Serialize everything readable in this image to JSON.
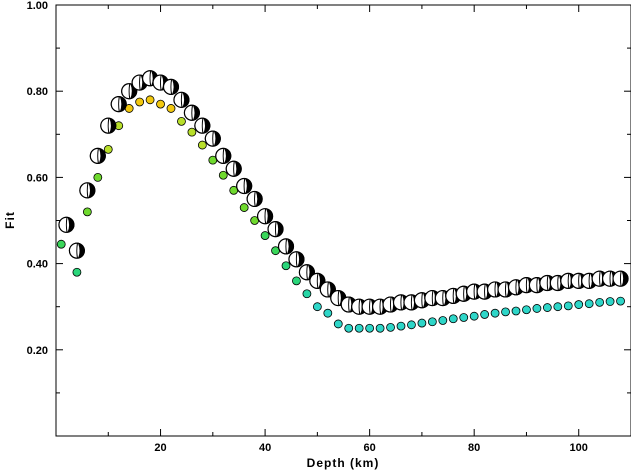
{
  "chart_data": {
    "type": "scatter",
    "title": "",
    "xlabel": "Depth (km)",
    "ylabel": "Fit",
    "xlim": [
      0,
      110
    ],
    "ylim": [
      0,
      1.0
    ],
    "x_ticks": [
      20,
      40,
      60,
      80,
      100
    ],
    "y_ticks": [
      0.2,
      0.4,
      0.6,
      0.8,
      1.0
    ],
    "x_tick_labels": [
      "20",
      "40",
      "60",
      "80",
      "100"
    ],
    "y_tick_labels": [
      "0.20",
      "0.40",
      "0.60",
      "0.80",
      "1.00"
    ],
    "grid": false,
    "legend": "none",
    "series": [
      {
        "kind": "focal-mechanism",
        "color": "#000000",
        "x": [
          2,
          4,
          6,
          8,
          10,
          12,
          14,
          16,
          18,
          20,
          22,
          24,
          26,
          28,
          30,
          32,
          34,
          36,
          38,
          40,
          42,
          44,
          46,
          48,
          50,
          52,
          54,
          56,
          58,
          60,
          62,
          64,
          66,
          68,
          70,
          72,
          74,
          76,
          78,
          80,
          82,
          84,
          86,
          88,
          90,
          92,
          94,
          96,
          98,
          100,
          102,
          104,
          106,
          108
        ],
        "y": [
          0.49,
          0.43,
          0.57,
          0.65,
          0.72,
          0.77,
          0.8,
          0.82,
          0.83,
          0.82,
          0.81,
          0.78,
          0.75,
          0.72,
          0.69,
          0.65,
          0.62,
          0.58,
          0.55,
          0.51,
          0.48,
          0.44,
          0.41,
          0.38,
          0.36,
          0.34,
          0.32,
          0.305,
          0.3,
          0.3,
          0.3,
          0.305,
          0.31,
          0.31,
          0.315,
          0.32,
          0.32,
          0.325,
          0.33,
          0.335,
          0.335,
          0.34,
          0.34,
          0.345,
          0.35,
          0.35,
          0.355,
          0.355,
          0.36,
          0.36,
          0.36,
          0.365,
          0.365,
          0.365
        ]
      },
      {
        "kind": "variance-reduction-dots",
        "x": [
          1,
          4,
          6,
          8,
          10,
          12,
          14,
          16,
          18,
          20,
          22,
          24,
          26,
          28,
          30,
          32,
          34,
          36,
          38,
          40,
          42,
          44,
          46,
          48,
          50,
          52,
          54,
          56,
          58,
          60,
          62,
          64,
          66,
          68,
          70,
          72,
          74,
          76,
          78,
          80,
          82,
          84,
          86,
          88,
          90,
          92,
          94,
          96,
          98,
          100,
          102,
          104,
          106,
          108
        ],
        "y": [
          0.445,
          0.38,
          0.52,
          0.6,
          0.665,
          0.72,
          0.76,
          0.775,
          0.78,
          0.77,
          0.76,
          0.73,
          0.705,
          0.675,
          0.64,
          0.605,
          0.57,
          0.53,
          0.5,
          0.465,
          0.43,
          0.395,
          0.36,
          0.33,
          0.3,
          0.285,
          0.26,
          0.25,
          0.25,
          0.25,
          0.25,
          0.252,
          0.255,
          0.258,
          0.262,
          0.265,
          0.268,
          0.272,
          0.275,
          0.278,
          0.282,
          0.285,
          0.288,
          0.29,
          0.293,
          0.296,
          0.298,
          0.3,
          0.302,
          0.305,
          0.307,
          0.31,
          0.312,
          0.313
        ]
      }
    ]
  }
}
